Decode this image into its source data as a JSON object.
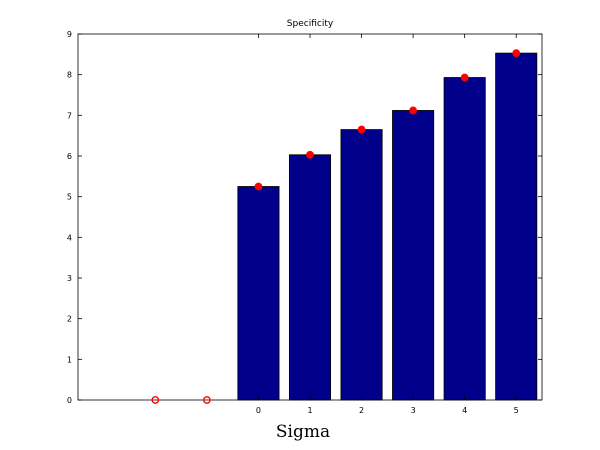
{
  "chart_data": {
    "type": "bar",
    "title": "Specificity",
    "xlabel": "Sigma",
    "ylabel": "",
    "ylim": [
      0,
      9
    ],
    "yticks": [
      0,
      1,
      2,
      3,
      4,
      5,
      6,
      7,
      8,
      9
    ],
    "x_slots": 9,
    "categories": [
      "",
      "",
      "",
      "0",
      "1",
      "2",
      "3",
      "4",
      "5"
    ],
    "values": [
      0,
      0,
      0,
      5.25,
      6.03,
      6.65,
      7.12,
      7.93,
      8.53
    ],
    "markers": [
      0,
      0,
      5.25,
      6.03,
      6.65,
      7.12,
      7.93,
      8.53
    ],
    "marker_slots": [
      1,
      2,
      3,
      4,
      5,
      6,
      7,
      8
    ],
    "bar_color": "#00008b",
    "marker_color": "#ff0000",
    "grid": false,
    "legend": "none"
  }
}
